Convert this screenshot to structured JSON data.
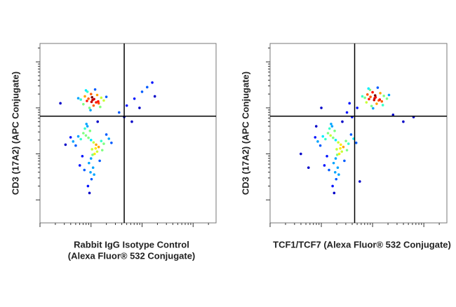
{
  "chart_data": [
    {
      "type": "scatter",
      "x_label": [
        "Rabbit IgG Isotype Control",
        "(Alexa Fluor® 532 Conjugate)"
      ],
      "y_label": "CD3 (17A2) (APC Conjugate)",
      "xlim": [
        0,
        3.45
      ],
      "ylim": [
        0,
        3.9
      ],
      "xticks": [
        0,
        1,
        2,
        3
      ],
      "yticks": [
        0.5,
        1.5,
        2.5,
        3.5
      ],
      "log_scale": true,
      "gate": {
        "x": 1.65,
        "y": 2.32
      },
      "color": "density",
      "series": [
        {
          "x": [
            1.03,
            0.95,
            1.1,
            0.88,
            1.15,
            1.0,
            1.05,
            0.92,
            1.2,
            0.8,
            1.08,
            0.97,
            1.12,
            0.85,
            1.25,
            1.01,
            0.93,
            1.18,
            0.75,
            1.06,
            0.99,
            1.3,
            0.9,
            1.14,
            1.02,
            1.0,
            0.95,
            1.05,
            0.9,
            1.1,
            0.85,
            1.15,
            0.98,
            1.02,
            0.8,
            1.2,
            0.93,
            1.07,
            0.75,
            1.25,
            1.0,
            0.88,
            1.12,
            0.7,
            1.3,
            0.96,
            1.04,
            0.83,
            1.17,
            0.65,
            1.35,
            0.99,
            1.01,
            0.91,
            1.09,
            0.78,
            1.22,
            0.94,
            1.06,
            0.87,
            1.13,
            0.97,
            1.03,
            0.6,
            1.4,
            1.55,
            1.7,
            1.85,
            2.0,
            2.1,
            2.2,
            1.95,
            1.65,
            2.25,
            1.8,
            0.4,
            0.5
          ],
          "y": [
            2.67,
            2.7,
            2.62,
            2.75,
            2.6,
            2.8,
            2.55,
            2.65,
            2.72,
            2.68,
            2.9,
            2.5,
            2.78,
            2.58,
            2.66,
            2.63,
            2.85,
            2.52,
            2.71,
            2.69,
            2.45,
            2.74,
            2.88,
            2.64,
            2.73,
            1.8,
            1.85,
            1.75,
            1.9,
            1.7,
            1.95,
            1.65,
            2.0,
            1.6,
            1.82,
            1.78,
            2.1,
            1.5,
            1.88,
            1.72,
            1.4,
            2.05,
            1.55,
            1.68,
            1.92,
            1.3,
            1.2,
            1.45,
            1.35,
            1.77,
            1.83,
            1.1,
            0.95,
            2.15,
            1.62,
            1.25,
            1.58,
            0.8,
            1.05,
            1.15,
            2.2,
            0.65,
            1.48,
            1.86,
            1.74,
            2.4,
            2.55,
            2.7,
            2.85,
            2.95,
            3.05,
            2.5,
            2.3,
            2.75,
            2.2,
            2.6,
            1.7
          ]
        }
      ]
    },
    {
      "type": "scatter",
      "x_label": [
        "TCF1/TCF7 (Alexa Fluor® 532 Conjugate)"
      ],
      "y_label": "CD3 (17A2) (APC Conjugate)",
      "xlim": [
        0,
        3.45
      ],
      "ylim": [
        0,
        3.9
      ],
      "xticks": [
        0,
        1,
        2,
        3
      ],
      "yticks": [
        0.5,
        1.5,
        2.5,
        3.5
      ],
      "log_scale": true,
      "gate": {
        "x": 1.65,
        "y": 2.32
      },
      "color": "density",
      "series": [
        {
          "x": [
            2.04,
            1.96,
            2.12,
            1.9,
            2.18,
            2.0,
            2.08,
            1.93,
            2.22,
            1.85,
            2.1,
            1.98,
            2.15,
            1.88,
            2.28,
            2.03,
            1.95,
            2.2,
            1.8,
            2.06,
            2.01,
            2.32,
            1.92,
            2.14,
            2.05,
            1.28,
            1.23,
            1.33,
            1.18,
            1.38,
            1.13,
            1.43,
            1.26,
            1.3,
            1.08,
            1.48,
            1.21,
            1.35,
            1.03,
            1.53,
            1.28,
            1.16,
            1.4,
            0.98,
            1.58,
            1.24,
            1.32,
            1.11,
            1.45,
            0.93,
            1.63,
            1.27,
            1.29,
            1.19,
            1.37,
            1.06,
            1.5,
            1.22,
            1.34,
            1.15,
            1.41,
            1.25,
            1.31,
            0.88,
            1.68,
            0.6,
            0.75,
            1.5,
            1.6,
            1.7,
            2.6,
            2.8,
            1.55,
            0.9,
            2.4,
            1.0,
            1.75
          ],
          "y": [
            2.71,
            2.74,
            2.66,
            2.79,
            2.64,
            2.84,
            2.59,
            2.69,
            2.76,
            2.72,
            2.94,
            2.54,
            2.82,
            2.62,
            2.7,
            2.67,
            2.89,
            2.56,
            2.75,
            2.73,
            2.49,
            2.78,
            2.92,
            2.68,
            2.77,
            1.8,
            1.85,
            1.75,
            1.9,
            1.7,
            1.95,
            1.65,
            2.0,
            1.6,
            1.82,
            1.78,
            2.1,
            1.5,
            1.88,
            1.72,
            1.4,
            2.05,
            1.55,
            1.68,
            1.92,
            1.3,
            1.2,
            1.45,
            1.35,
            1.77,
            1.83,
            1.1,
            0.95,
            2.15,
            1.62,
            1.25,
            1.58,
            0.8,
            1.05,
            1.15,
            2.2,
            0.65,
            1.48,
            1.86,
            1.74,
            1.5,
            1.2,
            2.4,
            2.3,
            2.5,
            2.2,
            2.3,
            2.6,
            2.1,
            2.35,
            2.5,
            0.9
          ]
        }
      ]
    }
  ]
}
